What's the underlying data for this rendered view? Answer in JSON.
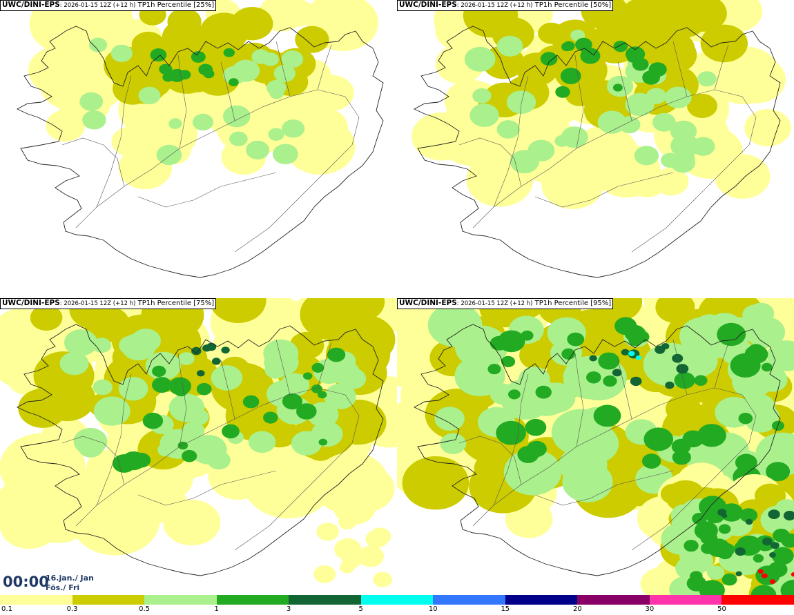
{
  "panels": [
    {
      "model": "UWC/DINI-EPS",
      "meta": ": 2026-01-15 12Z (+12 h)",
      "title": " TP1h Percentile [25%]"
    },
    {
      "model": "UWC/DINI-EPS",
      "meta": ": 2026-01-15 12Z (+12 h)",
      "title": " TP1h Percentile [50%]"
    },
    {
      "model": "UWC/DINI-EPS",
      "meta": ": 2026-01-15 12Z (+12 h)",
      "title": " TP1h Percentile [75%]"
    },
    {
      "model": "UWC/DINI-EPS",
      "meta": ": 2026-01-15 12Z (+12 h)",
      "title": " TP1h Percentile [95%]"
    }
  ],
  "time_box": {
    "time": "00:00",
    "date_line1": "16.jan./ Jan",
    "date_line2": "Fös./ Fri"
  },
  "colorbar": {
    "colors": [
      "#ffff99",
      "#cccc00",
      "#aaf08c",
      "#22aa22",
      "#116633",
      "#00ffee",
      "#3377ff",
      "#000088",
      "#880066",
      "#ff33aa",
      "#ff0000"
    ],
    "ticks": [
      "0.1",
      "0.3",
      "0.5",
      "1",
      "3",
      "5",
      "10",
      "15",
      "20",
      "30",
      "50"
    ]
  }
}
